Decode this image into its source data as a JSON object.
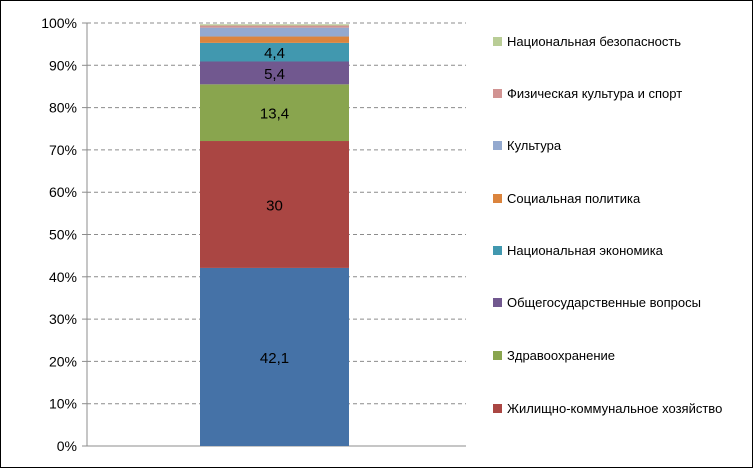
{
  "chart_data": {
    "type": "bar",
    "stacked": true,
    "percent_stacked": true,
    "categories": [
      ""
    ],
    "y_ticks": [
      "0%",
      "10%",
      "20%",
      "30%",
      "40%",
      "50%",
      "60%",
      "70%",
      "80%",
      "90%",
      "100%"
    ],
    "ylim": [
      0,
      100
    ],
    "grid": "horizontal dashed",
    "legend_position": "right",
    "series": [
      {
        "name": "Жилищно-коммунальное хозяйство",
        "value": 42.1,
        "label": "42,1",
        "color": "#4572A7"
      },
      {
        "name": "Здравоохранение",
        "value": 30,
        "label": "30",
        "color": "#AA4643"
      },
      {
        "name": "Общегосударственные вопросы",
        "value": 13.4,
        "label": "13,4",
        "color": "#89A54E"
      },
      {
        "name": "Национальная экономика",
        "value": 5.4,
        "label": "5,4",
        "color": "#71588F"
      },
      {
        "name": "Социальная политика",
        "value": 4.4,
        "label": "4,4",
        "color": "#4198AF"
      },
      {
        "name": "Культура",
        "value": 1.5,
        "label": "",
        "color": "#DB843D"
      },
      {
        "name": "Физическая культура и спорт",
        "value": 2.1,
        "label": "",
        "color": "#93A9CF"
      },
      {
        "name": "Национальная безопасность",
        "value": 0.5,
        "label": "",
        "color": "#D19392"
      },
      {
        "name": "",
        "value": 0.3,
        "label": "",
        "color": "#B9CD96"
      }
    ],
    "legend": [
      {
        "label": "Национальная безопасность",
        "color": "#B9CD96"
      },
      {
        "label": "Физическая культура и спорт",
        "color": "#D19392"
      },
      {
        "label": "Культура",
        "color": "#93A9CF"
      },
      {
        "label": "Социальная политика",
        "color": "#DB843D"
      },
      {
        "label": "Национальная экономика",
        "color": "#4198AF"
      },
      {
        "label": "Общегосударственные вопросы",
        "color": "#71588F"
      },
      {
        "label": "Здравоохранение",
        "color": "#89A54E"
      },
      {
        "label": "Жилищно-коммунальное хозяйство",
        "color": "#AA4643"
      }
    ]
  }
}
